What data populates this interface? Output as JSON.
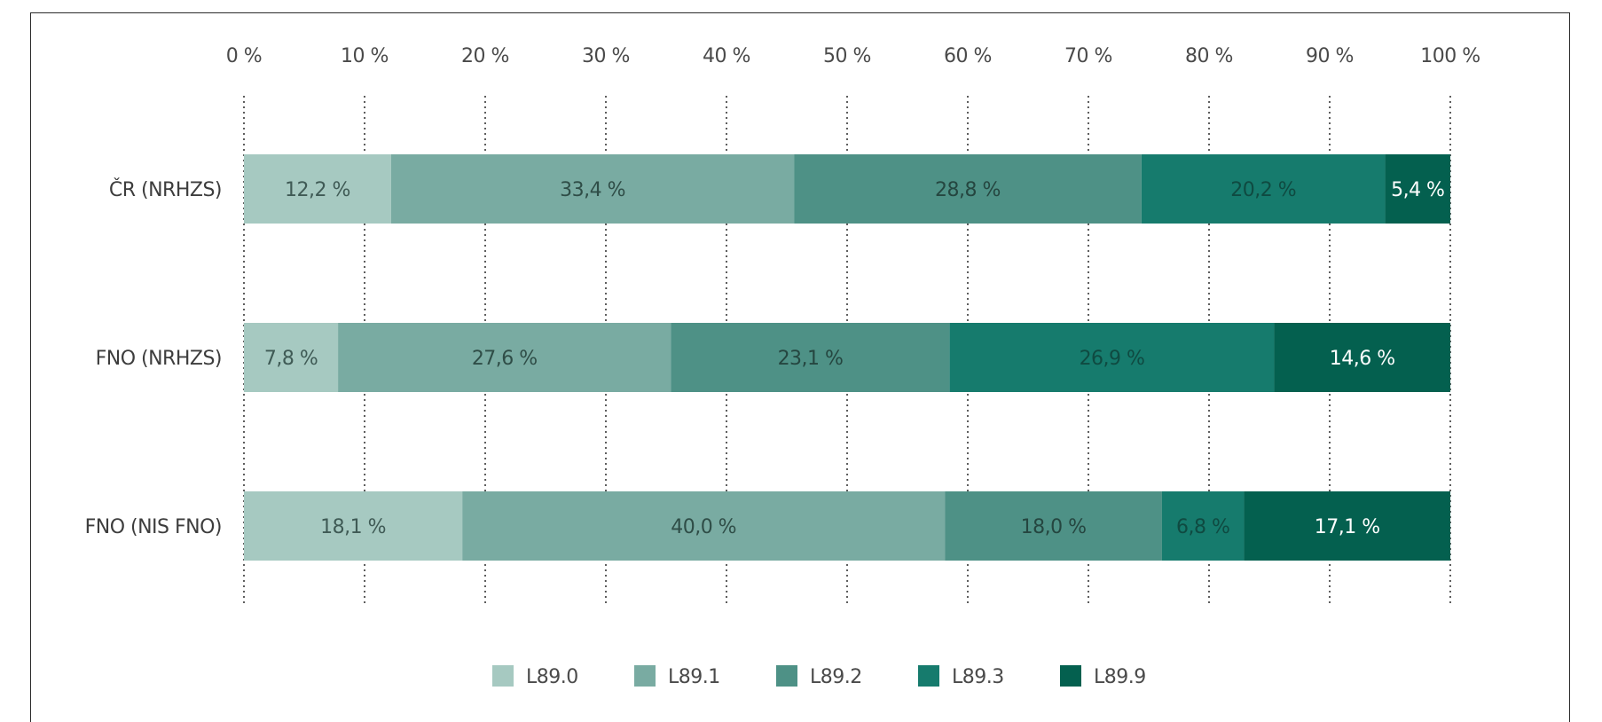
{
  "chart_data": {
    "type": "bar",
    "orientation": "horizontal",
    "stacked": true,
    "categories": [
      "ČR (NRHZS)",
      "FNO (NRHZS)",
      "FNO (NIS FNO)"
    ],
    "series": [
      {
        "name": "L89.0",
        "color": "#a6c9c1",
        "values": [
          12.2,
          7.8,
          18.1
        ],
        "labels": [
          "12,2 %",
          "7,8 %",
          "18,1 %"
        ],
        "label_color": "#3f5a55"
      },
      {
        "name": "L89.1",
        "color": "#79aba2",
        "values": [
          33.4,
          27.6,
          40.0
        ],
        "labels": [
          "33,4 %",
          "27,6 %",
          "40,0 %"
        ],
        "label_color": "#2f4d47"
      },
      {
        "name": "L89.2",
        "color": "#4e9186",
        "values": [
          28.8,
          23.1,
          18.0
        ],
        "labels": [
          "28,8 %",
          "23,1 %",
          "18,0 %"
        ],
        "label_color": "#254640"
      },
      {
        "name": "L89.3",
        "color": "#167b6d",
        "values": [
          20.2,
          26.9,
          6.8
        ],
        "labels": [
          "20,2 %",
          "26,9 %",
          "6,8 %"
        ],
        "label_color": "#0f4a41"
      },
      {
        "name": "L89.9",
        "color": "#04604f",
        "values": [
          5.4,
          14.6,
          17.1
        ],
        "labels": [
          "5,4 %",
          "14,6 %",
          "17,1 %"
        ],
        "label_color": "#ffffff"
      }
    ],
    "x_ticks": [
      {
        "value": 0,
        "label": "0 %"
      },
      {
        "value": 10,
        "label": "10 %"
      },
      {
        "value": 20,
        "label": "20 %"
      },
      {
        "value": 30,
        "label": "30 %"
      },
      {
        "value": 40,
        "label": "40 %"
      },
      {
        "value": 50,
        "label": "50 %"
      },
      {
        "value": 60,
        "label": "60 %"
      },
      {
        "value": 70,
        "label": "70 %"
      },
      {
        "value": 80,
        "label": "80 %"
      },
      {
        "value": 90,
        "label": "90 %"
      },
      {
        "value": 100,
        "label": "100 %"
      }
    ],
    "xlim": [
      0,
      100
    ],
    "x_axis_position": "top",
    "grid": "vertical-dotted",
    "legend_position": "bottom-center",
    "title": "",
    "xlabel": "",
    "ylabel": ""
  }
}
